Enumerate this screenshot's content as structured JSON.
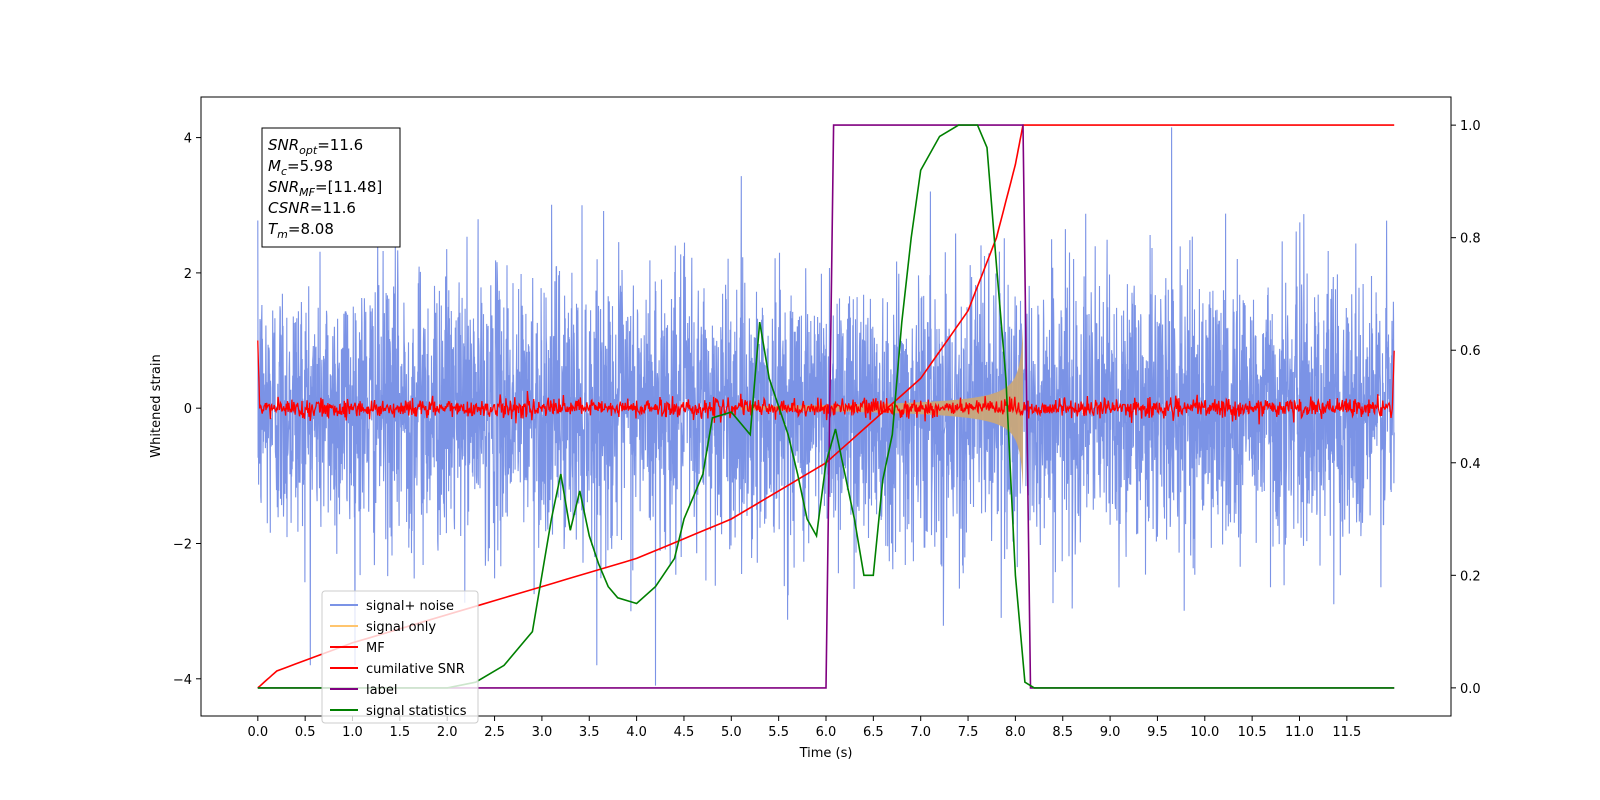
{
  "chart_data": {
    "type": "line",
    "xlabel": "Time (s)",
    "ylabel": "Whitened strain",
    "x_range": [
      -0.6,
      12.6
    ],
    "ylim": [
      -4.55,
      4.6
    ],
    "y2lim": [
      -0.05,
      1.05
    ],
    "x_ticks": [
      "0.0",
      "0.5",
      "1.0",
      "1.5",
      "2.0",
      "2.5",
      "3.0",
      "3.5",
      "4.0",
      "4.5",
      "5.0",
      "5.5",
      "6.0",
      "6.5",
      "7.0",
      "7.5",
      "8.0",
      "8.5",
      "9.0",
      "9.5",
      "10.0",
      "10.5",
      "11.0",
      "11.5"
    ],
    "y_ticks": [
      "4",
      "2",
      "0",
      "−2",
      "−4"
    ],
    "y2_ticks": [
      "1.0",
      "0.8",
      "0.6",
      "0.4",
      "0.2",
      "0.0"
    ],
    "grid": false,
    "legend_position": "lower-left",
    "annotation": {
      "lines": [
        {
          "sym": "SNR",
          "sub": "opt",
          "val": "=11.6"
        },
        {
          "sym": "M",
          "sub": "c",
          "val": "=5.98"
        },
        {
          "sym": "SNR",
          "sub": "MF",
          "val": "=[11.48]"
        },
        {
          "sym": "CSNR",
          "sub": "",
          "val": "=11.6"
        },
        {
          "sym": "T",
          "sub": "m",
          "val": "=8.08"
        }
      ]
    },
    "series": [
      {
        "name": "signal+ noise",
        "axis": "left",
        "color": "#7b93e6",
        "noise_std": 1.0,
        "duration": 12.0,
        "outliers": [
          [
            4.2,
            -4.1
          ],
          [
            9.65,
            4.15
          ],
          [
            7.85,
            -3.1
          ]
        ]
      },
      {
        "name": "signal only",
        "axis": "left",
        "color": "#ffc56e",
        "fill_color": "#c9a77a",
        "merger_time": 8.08,
        "peak_amplitude": 1.2
      },
      {
        "name": "MF",
        "axis": "left",
        "color": "#ff0000",
        "noise_std": 0.07,
        "edge_values": [
          1.0,
          0.85
        ]
      },
      {
        "name": "cumilative SNR",
        "axis": "right",
        "color": "#ff0000",
        "x": [
          0.0,
          0.2,
          1.0,
          2.0,
          3.0,
          4.0,
          5.0,
          6.0,
          7.0,
          7.5,
          7.8,
          8.0,
          8.08,
          12.0
        ],
        "y": [
          0.0,
          0.03,
          0.08,
          0.13,
          0.18,
          0.23,
          0.3,
          0.4,
          0.55,
          0.67,
          0.8,
          0.93,
          1.0,
          1.0
        ]
      },
      {
        "name": "label",
        "axis": "right",
        "color": "#800080",
        "x": [
          0.0,
          6.0,
          6.08,
          8.08,
          8.16,
          12.0
        ],
        "y": [
          0.0,
          0.0,
          1.0,
          1.0,
          0.0,
          0.0
        ]
      },
      {
        "name": "signal statistics",
        "axis": "right",
        "color": "#008000",
        "x": [
          0.0,
          2.0,
          2.3,
          2.6,
          2.9,
          3.0,
          3.1,
          3.2,
          3.3,
          3.4,
          3.5,
          3.6,
          3.7,
          3.8,
          4.0,
          4.2,
          4.4,
          4.5,
          4.7,
          4.8,
          5.0,
          5.1,
          5.2,
          5.3,
          5.4,
          5.5,
          5.6,
          5.7,
          5.8,
          5.9,
          6.0,
          6.1,
          6.2,
          6.3,
          6.4,
          6.5,
          6.6,
          6.7,
          6.8,
          6.9,
          7.0,
          7.2,
          7.4,
          7.6,
          7.7,
          7.8,
          7.9,
          8.0,
          8.1,
          8.2,
          12.0
        ],
        "y": [
          0.0,
          0.0,
          0.01,
          0.04,
          0.1,
          0.2,
          0.3,
          0.38,
          0.28,
          0.35,
          0.27,
          0.22,
          0.18,
          0.16,
          0.15,
          0.18,
          0.23,
          0.3,
          0.38,
          0.48,
          0.49,
          0.47,
          0.45,
          0.65,
          0.55,
          0.5,
          0.45,
          0.38,
          0.3,
          0.27,
          0.4,
          0.46,
          0.38,
          0.3,
          0.2,
          0.2,
          0.37,
          0.45,
          0.65,
          0.8,
          0.92,
          0.98,
          1.0,
          1.0,
          0.96,
          0.75,
          0.55,
          0.2,
          0.01,
          0.0,
          0.0
        ]
      }
    ]
  }
}
